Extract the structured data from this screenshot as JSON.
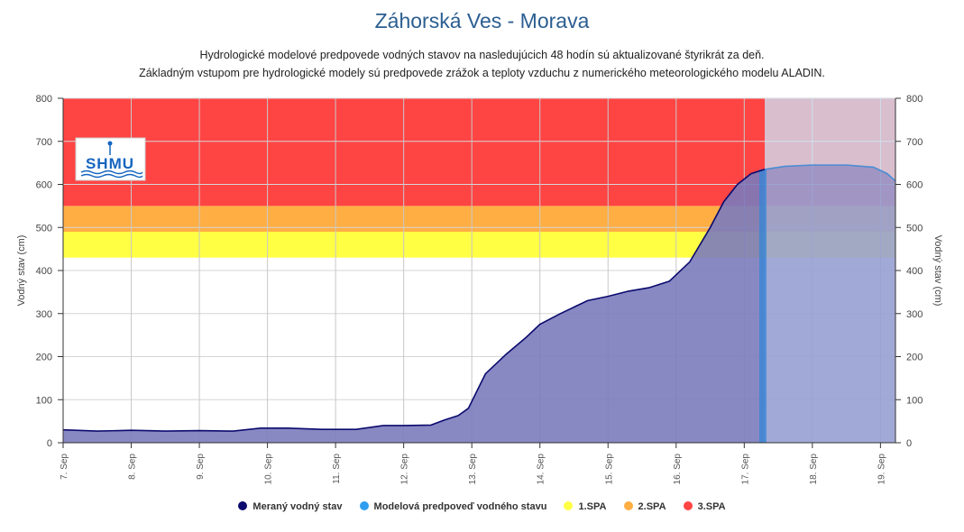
{
  "title": "Záhorská Ves - Morava",
  "subtitle_line1": "Hydrologické modelové predpovede vodných stavov na nasledujúcich 48 hodín sú aktualizované štyrikrát za deň.",
  "subtitle_line2": "Základným vstupom pre hydrologické modely sú predpovede zrážok a teploty vzduchu z numerického meteorologického modelu ALADIN.",
  "logo_text": "SHMU",
  "colors": {
    "measured": "#0b0b6e",
    "measured_fill": "#7b7bbd",
    "forecast": "#2f86d8",
    "forecast_fill": "#cce7fb",
    "spa1": "#ffff44",
    "spa2": "#ffae44",
    "spa3": "#ff4444"
  },
  "chart_data": {
    "type": "area",
    "title": "Záhorská Ves - Morava",
    "ylabel": "Vodný stav (cm)",
    "ylabel_right": "Vodný stav (cm)",
    "ylim": [
      0,
      800
    ],
    "xlim": [
      7.0,
      19.22
    ],
    "y_ticks": [
      0,
      100,
      200,
      300,
      400,
      500,
      600,
      700,
      800
    ],
    "x_ticks": [
      7,
      8,
      9,
      10,
      11,
      12,
      13,
      14,
      15,
      16,
      17,
      18,
      19
    ],
    "x_tick_labels": [
      "7. Sep",
      "8. Sep",
      "9. Sep",
      "10. Sep",
      "11. Sep",
      "12. Sep",
      "13. Sep",
      "14. Sep",
      "15. Sep",
      "16. Sep",
      "17. Sep",
      "18. Sep",
      "19. Sep"
    ],
    "grid": true,
    "legend_position": "bottom",
    "thresholds": [
      {
        "name": "1.SPA",
        "from": 430,
        "to": 490
      },
      {
        "name": "2.SPA",
        "from": 490,
        "to": 550
      },
      {
        "name": "3.SPA",
        "from": 550,
        "to": 800
      }
    ],
    "series": [
      {
        "name": "Meraný vodný stav",
        "x": [
          7.0,
          7.5,
          8.0,
          8.5,
          9.0,
          9.5,
          9.9,
          10.3,
          10.8,
          11.3,
          11.7,
          12.0,
          12.4,
          12.6,
          12.8,
          12.95,
          13.2,
          13.5,
          13.8,
          14.0,
          14.3,
          14.7,
          15.0,
          15.3,
          15.6,
          15.9,
          16.2,
          16.5,
          16.7,
          16.9,
          17.1,
          17.3
        ],
        "values": [
          30,
          27,
          29,
          27,
          28,
          27,
          34,
          34,
          31,
          31,
          40,
          40,
          41,
          53,
          63,
          80,
          160,
          205,
          245,
          275,
          300,
          330,
          340,
          352,
          360,
          375,
          420,
          500,
          560,
          600,
          625,
          635
        ]
      },
      {
        "name": "Modelová predpoveď vodného stavu",
        "x": [
          17.3,
          17.6,
          18.0,
          18.5,
          18.9,
          19.1,
          19.22
        ],
        "values": [
          635,
          642,
          645,
          645,
          640,
          625,
          608
        ]
      }
    ]
  },
  "legend": {
    "measured": "Meraný vodný stav",
    "forecast": "Modelová predpoveď vodného stavu",
    "spa1": "1.SPA",
    "spa2": "2.SPA",
    "spa3": "3.SPA"
  }
}
